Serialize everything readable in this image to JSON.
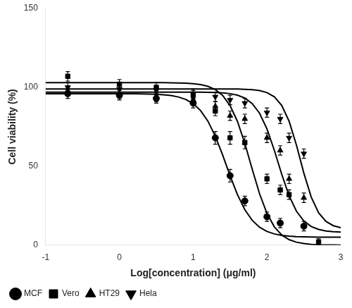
{
  "chart_data": {
    "type": "scatter",
    "xlabel": "Log[concentration] (μg/ml)",
    "ylabel": "Cell viability (%)",
    "xlim": [
      -1,
      3
    ],
    "ylim": [
      0,
      150
    ],
    "xticks": [
      -1,
      0,
      1,
      2,
      3
    ],
    "yticks": [
      0,
      50,
      100,
      150
    ],
    "grid": false,
    "legend": "lower left",
    "series": [
      {
        "type": "line",
        "color": "#000000",
        "line_style": "solid",
        "x": [
          -1,
          -0.9,
          -0.8,
          -0.7,
          -0.6,
          -0.5,
          -0.4,
          -0.3,
          -0.2,
          -0.1,
          0,
          0.1,
          0.2,
          0.3,
          0.4,
          0.5,
          0.6,
          0.7,
          0.8,
          0.9,
          1,
          1.1,
          1.2,
          1.3,
          1.4,
          1.5,
          1.6,
          1.7,
          1.8,
          1.9,
          2,
          2.1,
          2.2,
          2.3,
          2.4,
          2.5,
          2.6,
          2.7,
          2.8,
          2.9,
          3
        ],
        "values": [
          96,
          96,
          96,
          96,
          96,
          96,
          96,
          96,
          95.99,
          95.99,
          95.98,
          95.96,
          95.93,
          95.88,
          95.78,
          95.62,
          95.32,
          94.8,
          93.89,
          92.32,
          89.65,
          85.29,
          78.56,
          69.01,
          57.0,
          44.0,
          31.99,
          22.44,
          15.71,
          11.35,
          8.68,
          7.11,
          6.2,
          5.68,
          5.38,
          5.22,
          5.12,
          5.07,
          5.04,
          5.02,
          5.01
        ]
      },
      {
        "type": "scatter",
        "name": "MCF",
        "color": "#000000",
        "marker": "circle",
        "x": [
          -0.7,
          0.0,
          0.5,
          1.0,
          1.3,
          1.5,
          1.7,
          2.0,
          2.18,
          2.5
        ],
        "values": [
          96,
          95,
          93,
          90,
          68,
          44,
          28,
          18,
          14,
          12
        ],
        "yerr": [
          3,
          3,
          3,
          3,
          4,
          4,
          3,
          3,
          3,
          3
        ]
      },
      {
        "type": "line",
        "color": "#000000",
        "line_style": "solid",
        "x": [
          -1,
          -0.9,
          -0.8,
          -0.7,
          -0.6,
          -0.5,
          -0.4,
          -0.3,
          -0.2,
          -0.1,
          0,
          0.1,
          0.2,
          0.3,
          0.4,
          0.5,
          0.6,
          0.7,
          0.8,
          0.9,
          1,
          1.1,
          1.2,
          1.3,
          1.4,
          1.5,
          1.6,
          1.7,
          1.8,
          1.9,
          2,
          2.1,
          2.2,
          2.3,
          2.4,
          2.5,
          2.6,
          2.7,
          2.8,
          2.9,
          3
        ],
        "values": [
          103,
          103,
          103,
          103,
          103,
          103,
          103,
          103,
          103,
          103,
          103,
          103,
          103,
          102.99,
          102.99,
          102.97,
          102.95,
          102.9,
          102.81,
          102.65,
          102.33,
          101.73,
          100.61,
          98.54,
          94.82,
          88.45,
          78.43,
          64.49,
          48.18,
          32.52,
          20.08,
          11.61,
          6.44,
          3.48,
          1.86,
          0.98,
          0.52,
          0.27,
          0.14,
          0.08,
          0.04
        ]
      },
      {
        "type": "scatter",
        "name": "Vero",
        "color": "#000000",
        "marker": "square",
        "x": [
          -0.7,
          0.0,
          0.5,
          1.0,
          1.3,
          1.5,
          1.7,
          2.0,
          2.18,
          2.3,
          2.7
        ],
        "values": [
          107,
          102,
          100,
          95,
          85,
          68,
          65,
          42,
          35,
          32,
          2
        ],
        "yerr": [
          3,
          3,
          3,
          3,
          3,
          4,
          4,
          3,
          3,
          3,
          2
        ]
      },
      {
        "type": "line",
        "color": "#000000",
        "line_style": "solid",
        "x": [
          -1,
          -0.9,
          -0.8,
          -0.7,
          -0.6,
          -0.5,
          -0.4,
          -0.3,
          -0.2,
          -0.1,
          0,
          0.1,
          0.2,
          0.3,
          0.4,
          0.5,
          0.6,
          0.7,
          0.8,
          0.9,
          1,
          1.1,
          1.2,
          1.3,
          1.4,
          1.5,
          1.6,
          1.7,
          1.8,
          1.9,
          2,
          2.1,
          2.2,
          2.3,
          2.4,
          2.5,
          2.6,
          2.7,
          2.8,
          2.9,
          3
        ],
        "values": [
          97,
          97,
          97,
          97,
          97,
          97,
          97,
          97,
          97,
          97,
          97,
          97,
          97,
          97,
          97,
          97,
          97,
          97,
          96.99,
          96.98,
          96.97,
          96.94,
          96.87,
          96.75,
          96.5,
          96.01,
          95.05,
          93.19,
          89.72,
          83.56,
          73.69,
          60.11,
          44.89,
          31.31,
          21.44,
          15.28,
          11.81,
          9.95,
          8.99,
          8.5,
          8.25
        ]
      },
      {
        "type": "scatter",
        "name": "HT29",
        "color": "#000000",
        "marker": "triangle-up",
        "x": [
          -0.7,
          0.0,
          0.5,
          1.0,
          1.3,
          1.5,
          1.7,
          2.0,
          2.18,
          2.3,
          2.5
        ],
        "values": [
          98,
          96,
          94,
          92,
          88,
          82,
          80,
          68,
          60,
          42,
          30
        ],
        "yerr": [
          3,
          3,
          3,
          3,
          3,
          3,
          3,
          3,
          3,
          3,
          3
        ]
      },
      {
        "type": "line",
        "color": "#000000",
        "line_style": "solid",
        "x": [
          -1,
          -0.9,
          -0.8,
          -0.7,
          -0.6,
          -0.5,
          -0.4,
          -0.3,
          -0.2,
          -0.1,
          0,
          0.1,
          0.2,
          0.3,
          0.4,
          0.5,
          0.6,
          0.7,
          0.8,
          0.9,
          1,
          1.1,
          1.2,
          1.3,
          1.4,
          1.5,
          1.6,
          1.7,
          1.8,
          1.9,
          2,
          2.1,
          2.2,
          2.3,
          2.4,
          2.5,
          2.6,
          2.7,
          2.8,
          2.9,
          3
        ],
        "values": [
          99,
          99,
          99,
          99,
          99,
          99,
          99,
          99,
          99,
          99,
          99,
          99,
          99,
          99,
          99,
          99,
          99,
          99,
          99,
          99,
          99,
          99,
          99,
          98.99,
          98.98,
          98.96,
          98.91,
          98.79,
          98.53,
          97.95,
          96.69,
          94.0,
          88.53,
          78.54,
          63.35,
          45.65,
          30.46,
          20.47,
          15.0,
          12.31,
          11.05
        ]
      },
      {
        "type": "scatter",
        "name": "Hela",
        "color": "#000000",
        "marker": "triangle-down",
        "x": [
          -0.7,
          0.0,
          0.5,
          1.0,
          1.3,
          1.5,
          1.7,
          2.0,
          2.18,
          2.3,
          2.5
        ],
        "values": [
          100,
          99,
          98,
          96,
          94,
          92,
          90,
          84,
          80,
          68,
          58
        ],
        "yerr": [
          3,
          3,
          3,
          3,
          3,
          3,
          3,
          3,
          3,
          3,
          3
        ]
      }
    ]
  }
}
